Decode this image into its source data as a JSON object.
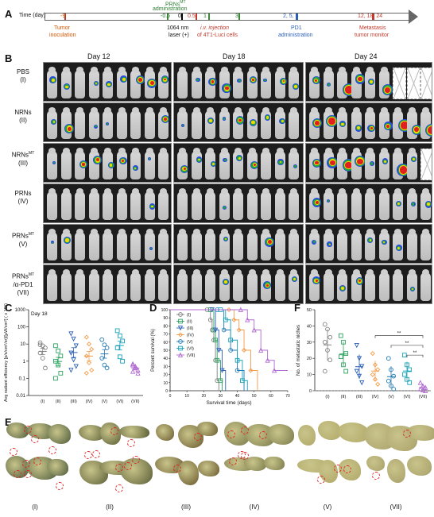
{
  "panels": {
    "A": "A",
    "B": "B",
    "C": "C",
    "D": "D",
    "E": "E",
    "F": "F"
  },
  "timeline": {
    "axis_label": "Time (day)",
    "ticks": [
      "-9",
      "-0.5",
      "0",
      "0.5",
      "1",
      "3",
      "2, 5, 8",
      "12, 18, 24"
    ],
    "prns_label": "PRNs",
    "prns_sup": "MT",
    "prns_admin": "administration",
    "laser": "1064 nm",
    "laser2": "laser (+)",
    "iv1": "i.v. injection",
    "iv2": "of 4T1-Luci cells",
    "tumor1": "Tumor",
    "tumor2": "inoculation",
    "pd1a": "PD1",
    "pd1b": "administration",
    "meta1": "Metastasis",
    "meta2": "tumor monitor"
  },
  "imaging": {
    "days": [
      "Day 12",
      "Day 18",
      "Day 24"
    ],
    "rows": [
      {
        "l1": "PBS",
        "l2": "(I)"
      },
      {
        "l1": "NRNs",
        "l2": "(II)"
      },
      {
        "l1": "NRNs",
        "sup": "MT",
        "l2": "(III)"
      },
      {
        "l1": "PRNs",
        "l2": "(IV)"
      },
      {
        "l1": "PRNs",
        "sup": "MT",
        "l2": "(V)"
      },
      {
        "l1": "PRNs",
        "sup": "MT",
        "l2": "/α-PD1",
        "l3": "(VII)"
      }
    ]
  },
  "chart_data": [
    {
      "type": "scatter",
      "panel": "C",
      "annotation": "Day 18",
      "ylabel": "Avg radiant efficiency [p/s/cm²/sr]/[μW/cm²] ( x 10⁸)",
      "yscale": "log",
      "ylim": [
        0.01,
        1000
      ],
      "yticks": [
        "0.01",
        "0.1",
        "1",
        "10",
        "100",
        "1000"
      ],
      "categories": [
        "(I)",
        "(II)",
        "(III)",
        "(IV)",
        "(V)",
        "(VI)",
        "(VII)"
      ],
      "colors": [
        "#7f7f7f",
        "#2ca25f",
        "#2b5fb5",
        "#f39c4a",
        "#1f78b4",
        "#17a2b8",
        "#b06ad0"
      ],
      "values": [
        [
          12,
          8,
          6,
          3,
          1.5,
          0.4,
          9
        ],
        [
          8,
          4,
          2,
          1,
          0.6,
          0.2,
          0.1
        ],
        [
          40,
          20,
          8,
          3,
          1.2,
          0.5,
          0.3
        ],
        [
          25,
          10,
          5,
          2,
          0.8,
          0.3,
          0.2
        ],
        [
          18,
          9,
          6,
          1.5,
          0.6,
          0.4
        ],
        [
          60,
          30,
          15,
          6,
          1.8,
          1
        ],
        [
          0.6,
          0.4,
          0.3,
          0.25,
          0.5,
          0.2,
          0.7
        ]
      ]
    },
    {
      "type": "line",
      "panel": "D",
      "xlabel": "Survival time (days)",
      "ylabel": "Percent survival (%)",
      "xlim": [
        0,
        70
      ],
      "ylim": [
        0,
        100
      ],
      "xticks": [
        "0",
        "10",
        "20",
        "30",
        "40",
        "50",
        "60",
        "70"
      ],
      "yticks": [
        "0",
        "10",
        "20",
        "30",
        "40",
        "50",
        "60",
        "70",
        "80",
        "90",
        "100"
      ],
      "series": [
        {
          "name": "(I)",
          "color": "#7f7f7f",
          "marker": "o",
          "x": [
            0,
            22,
            24,
            25,
            26,
            27,
            28,
            29
          ],
          "y": [
            100,
            100,
            87.5,
            75,
            62.5,
            37.5,
            12.5,
            0
          ]
        },
        {
          "name": "(II)",
          "color": "#2ca25f",
          "marker": "s",
          "x": [
            0,
            24,
            26,
            27,
            28,
            30,
            31
          ],
          "y": [
            100,
            100,
            75,
            62.5,
            37.5,
            12.5,
            0
          ]
        },
        {
          "name": "(III)",
          "color": "#2b5fb5",
          "marker": "v",
          "x": [
            0,
            25,
            27,
            29,
            31,
            33
          ],
          "y": [
            100,
            100,
            75,
            50,
            25,
            0
          ]
        },
        {
          "name": "(IV)",
          "color": "#f39c4a",
          "marker": "d",
          "x": [
            0,
            35,
            38,
            41,
            44,
            48,
            52
          ],
          "y": [
            100,
            100,
            87.5,
            75,
            50,
            25,
            0
          ]
        },
        {
          "name": "(V)",
          "color": "#1f78b4",
          "marker": "o",
          "x": [
            0,
            28,
            32,
            36,
            40,
            44
          ],
          "y": [
            100,
            100,
            75,
            50,
            25,
            0
          ]
        },
        {
          "name": "(VI)",
          "color": "#17a2b8",
          "marker": "s",
          "x": [
            0,
            30,
            33,
            36,
            40,
            43,
            46
          ],
          "y": [
            100,
            100,
            87.5,
            62.5,
            37.5,
            12.5,
            0
          ]
        },
        {
          "name": "(VII)",
          "color": "#b06ad0",
          "marker": "^",
          "x": [
            0,
            42,
            46,
            50,
            54,
            58,
            62,
            70
          ],
          "y": [
            100,
            100,
            87.5,
            75,
            50,
            37.5,
            25,
            25
          ]
        }
      ]
    },
    {
      "type": "scatter",
      "panel": "F",
      "ylabel": "No. of metastatic niches",
      "ylim": [
        0,
        50
      ],
      "yticks": [
        "0",
        "10",
        "20",
        "30",
        "40",
        "50"
      ],
      "categories": [
        "(I)",
        "(II)",
        "(III)",
        "(IV)",
        "(V)",
        "(VI)",
        "(VII)"
      ],
      "significance": [
        "**",
        "**",
        "**"
      ],
      "colors": [
        "#7f7f7f",
        "#2ca25f",
        "#2b5fb5",
        "#f39c4a",
        "#1f78b4",
        "#17a2b8",
        "#b06ad0"
      ],
      "values": [
        [
          41,
          38,
          33,
          30,
          25,
          19,
          12
        ],
        [
          34,
          30,
          23,
          21,
          16,
          12
        ],
        [
          28,
          20,
          15,
          12,
          9,
          5
        ],
        [
          23,
          16,
          13,
          10,
          7,
          4
        ],
        [
          20,
          13,
          9,
          6,
          3,
          1
        ],
        [
          22,
          16,
          13,
          10,
          7,
          5
        ],
        [
          5,
          3,
          2,
          1,
          0.5,
          0
        ]
      ]
    }
  ],
  "liver_labels": [
    "(I)",
    "(II)",
    "(III)",
    "(IV)",
    "(V)",
    "(VII)"
  ]
}
